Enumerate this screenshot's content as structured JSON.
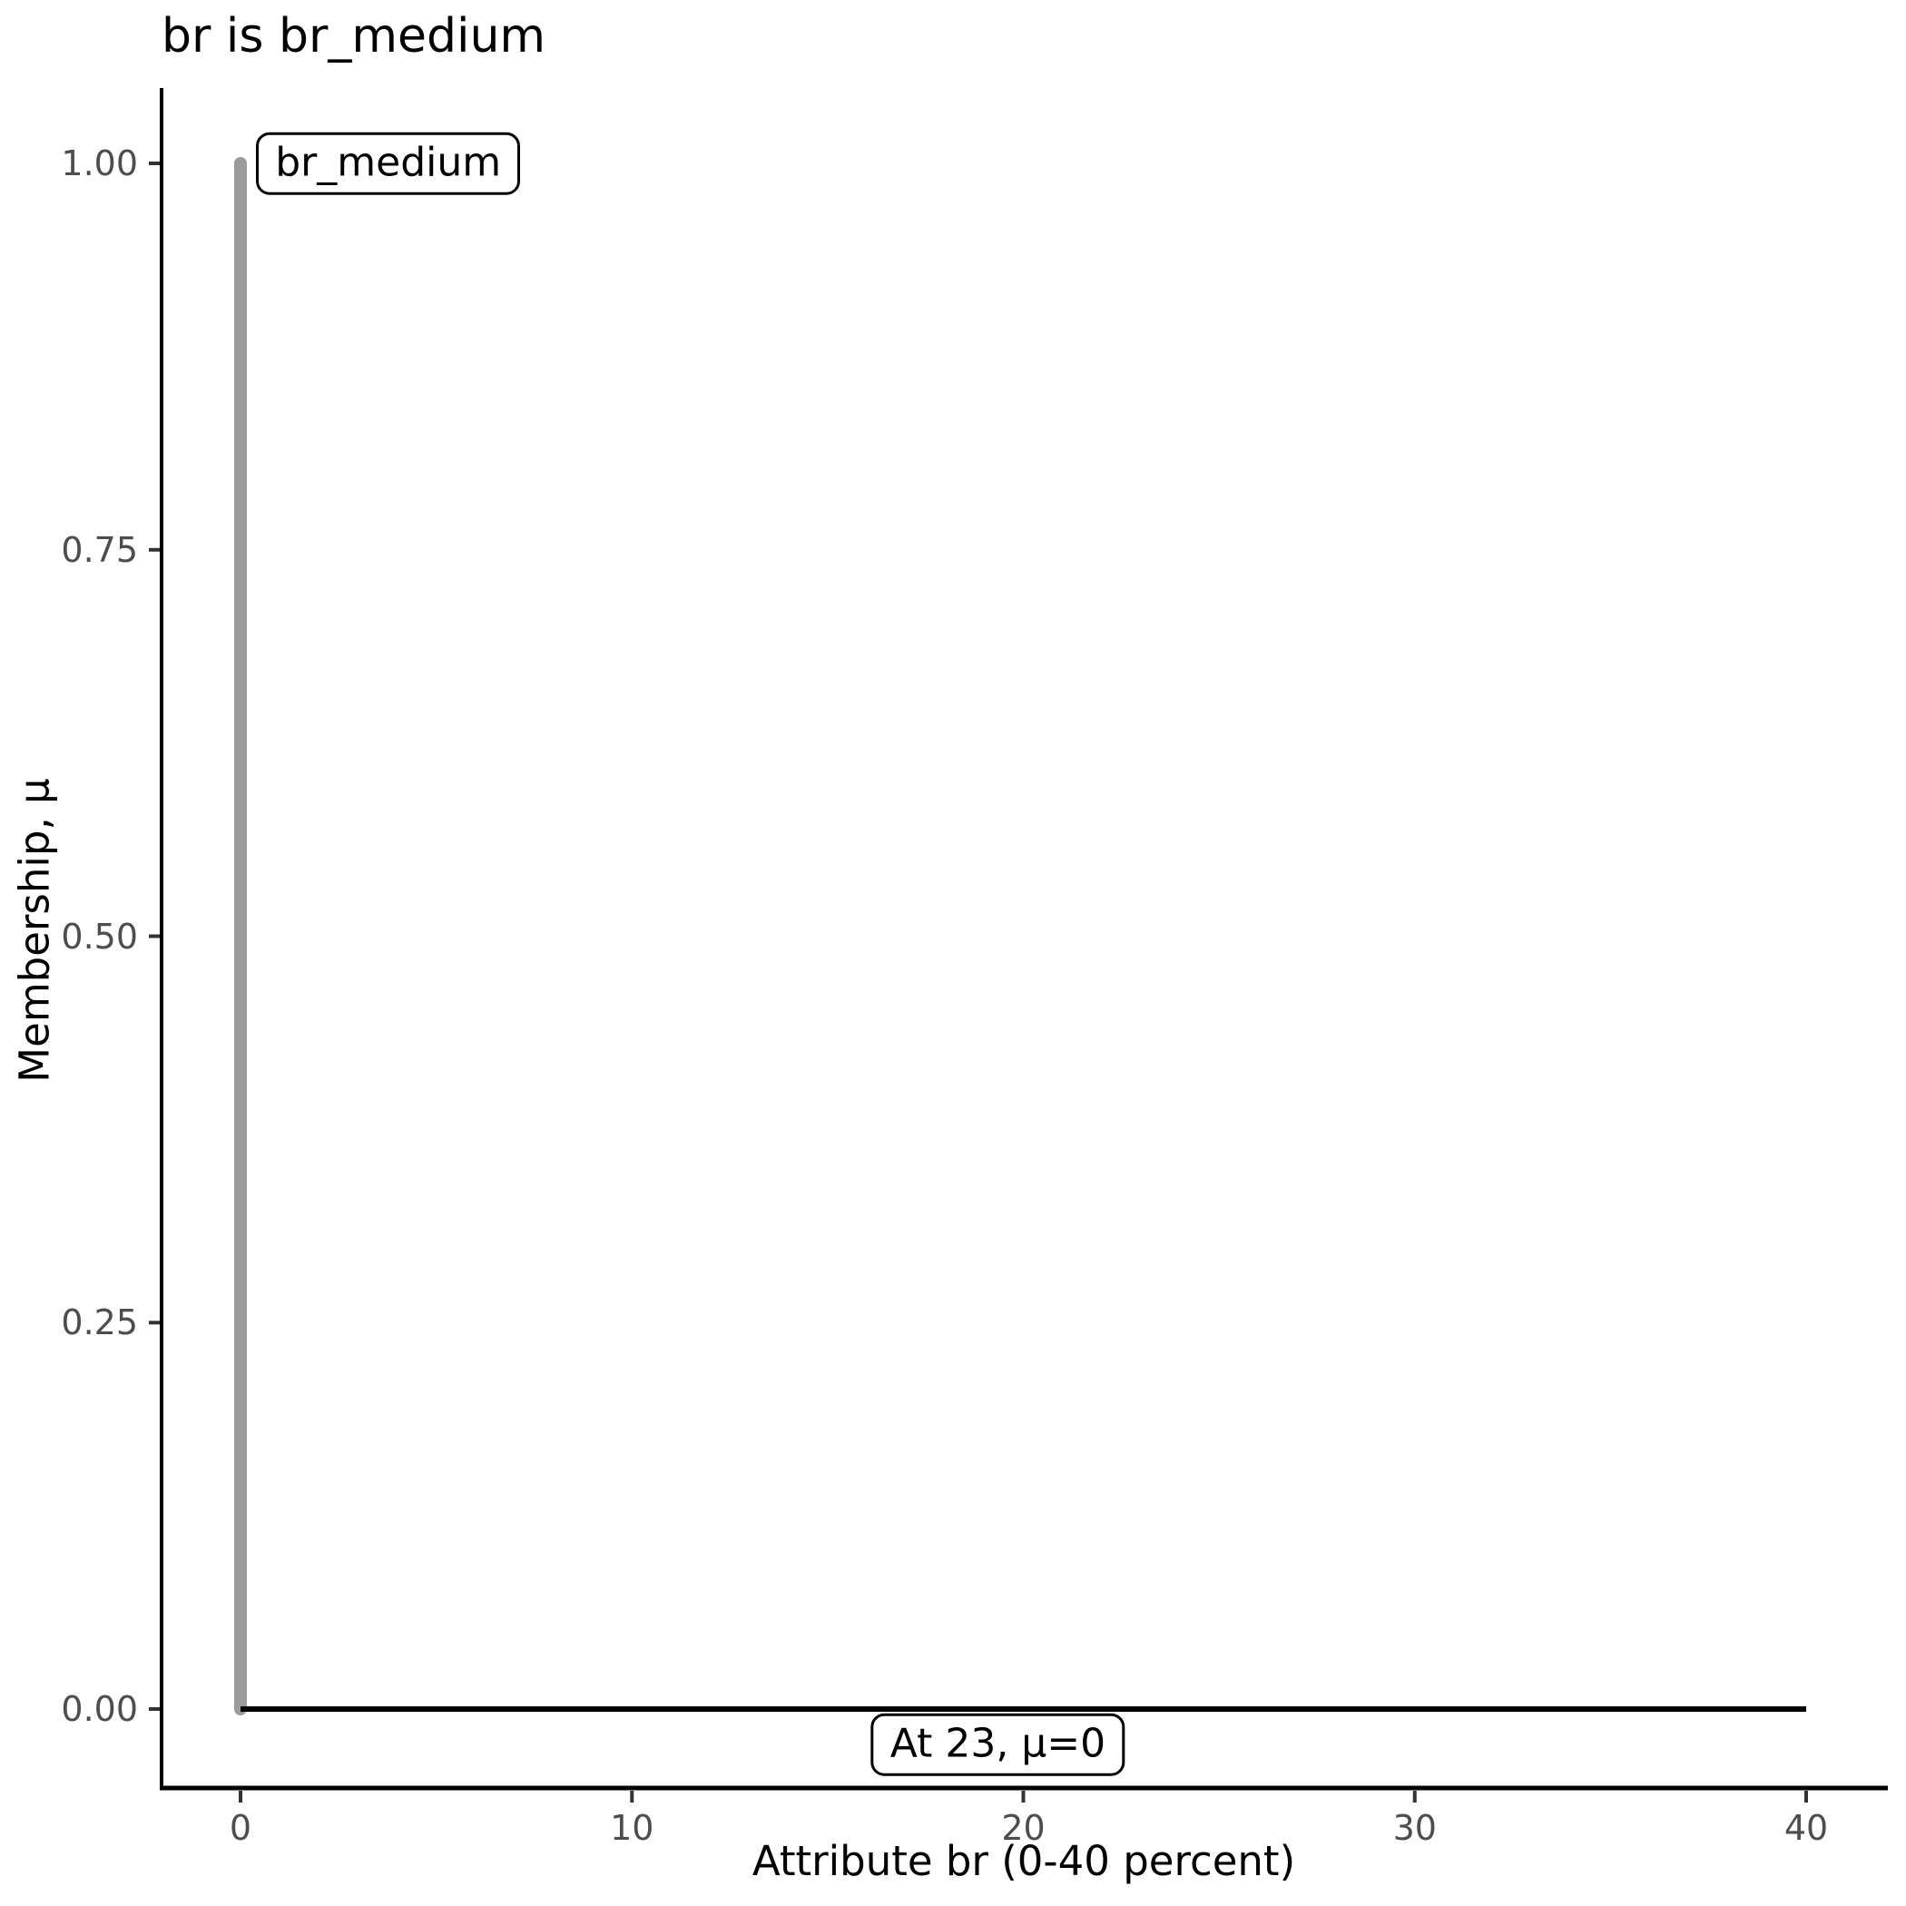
{
  "chart_data": {
    "type": "line",
    "title": "br is br_medium",
    "xlabel": "Attribute br (0-40 percent)",
    "ylabel": "Membership, μ",
    "xlim": [
      0,
      40
    ],
    "ylim": [
      0,
      1
    ],
    "grid": false,
    "legend": "none",
    "x_ticks": [
      {
        "value": 0,
        "label": "0"
      },
      {
        "value": 10,
        "label": "10"
      },
      {
        "value": 20,
        "label": "20"
      },
      {
        "value": 30,
        "label": "30"
      },
      {
        "value": 40,
        "label": "40"
      }
    ],
    "y_ticks": [
      {
        "value": 0,
        "label": "0.00"
      },
      {
        "value": 0.25,
        "label": "0.25"
      },
      {
        "value": 0.5,
        "label": "0.50"
      },
      {
        "value": 0.75,
        "label": "0.75"
      },
      {
        "value": 1,
        "label": "1.00"
      }
    ],
    "series": [
      {
        "name": "br_medium-membership-function",
        "points": [
          [
            0,
            0
          ],
          [
            0,
            1
          ]
        ],
        "color": "#9b9b9b",
        "width": 14,
        "linecap": "round"
      },
      {
        "name": "zero-membership-line",
        "points": [
          [
            0,
            0
          ],
          [
            40,
            0
          ]
        ],
        "color": "#000000",
        "width": 6,
        "linecap": "butt"
      }
    ],
    "annotations": [
      {
        "text": "br_medium",
        "x": 0.4,
        "y": 1.0,
        "anchor": "left-middle"
      },
      {
        "text": "At 23, μ=0",
        "x": 19.35,
        "y": -0.023,
        "anchor": "center-middle"
      }
    ]
  },
  "colors": {
    "axis_line": "#000000",
    "tick_mark": "#333333",
    "tick_label": "#4d4d4d",
    "membership_line": "#9b9b9b",
    "background": "#ffffff"
  }
}
